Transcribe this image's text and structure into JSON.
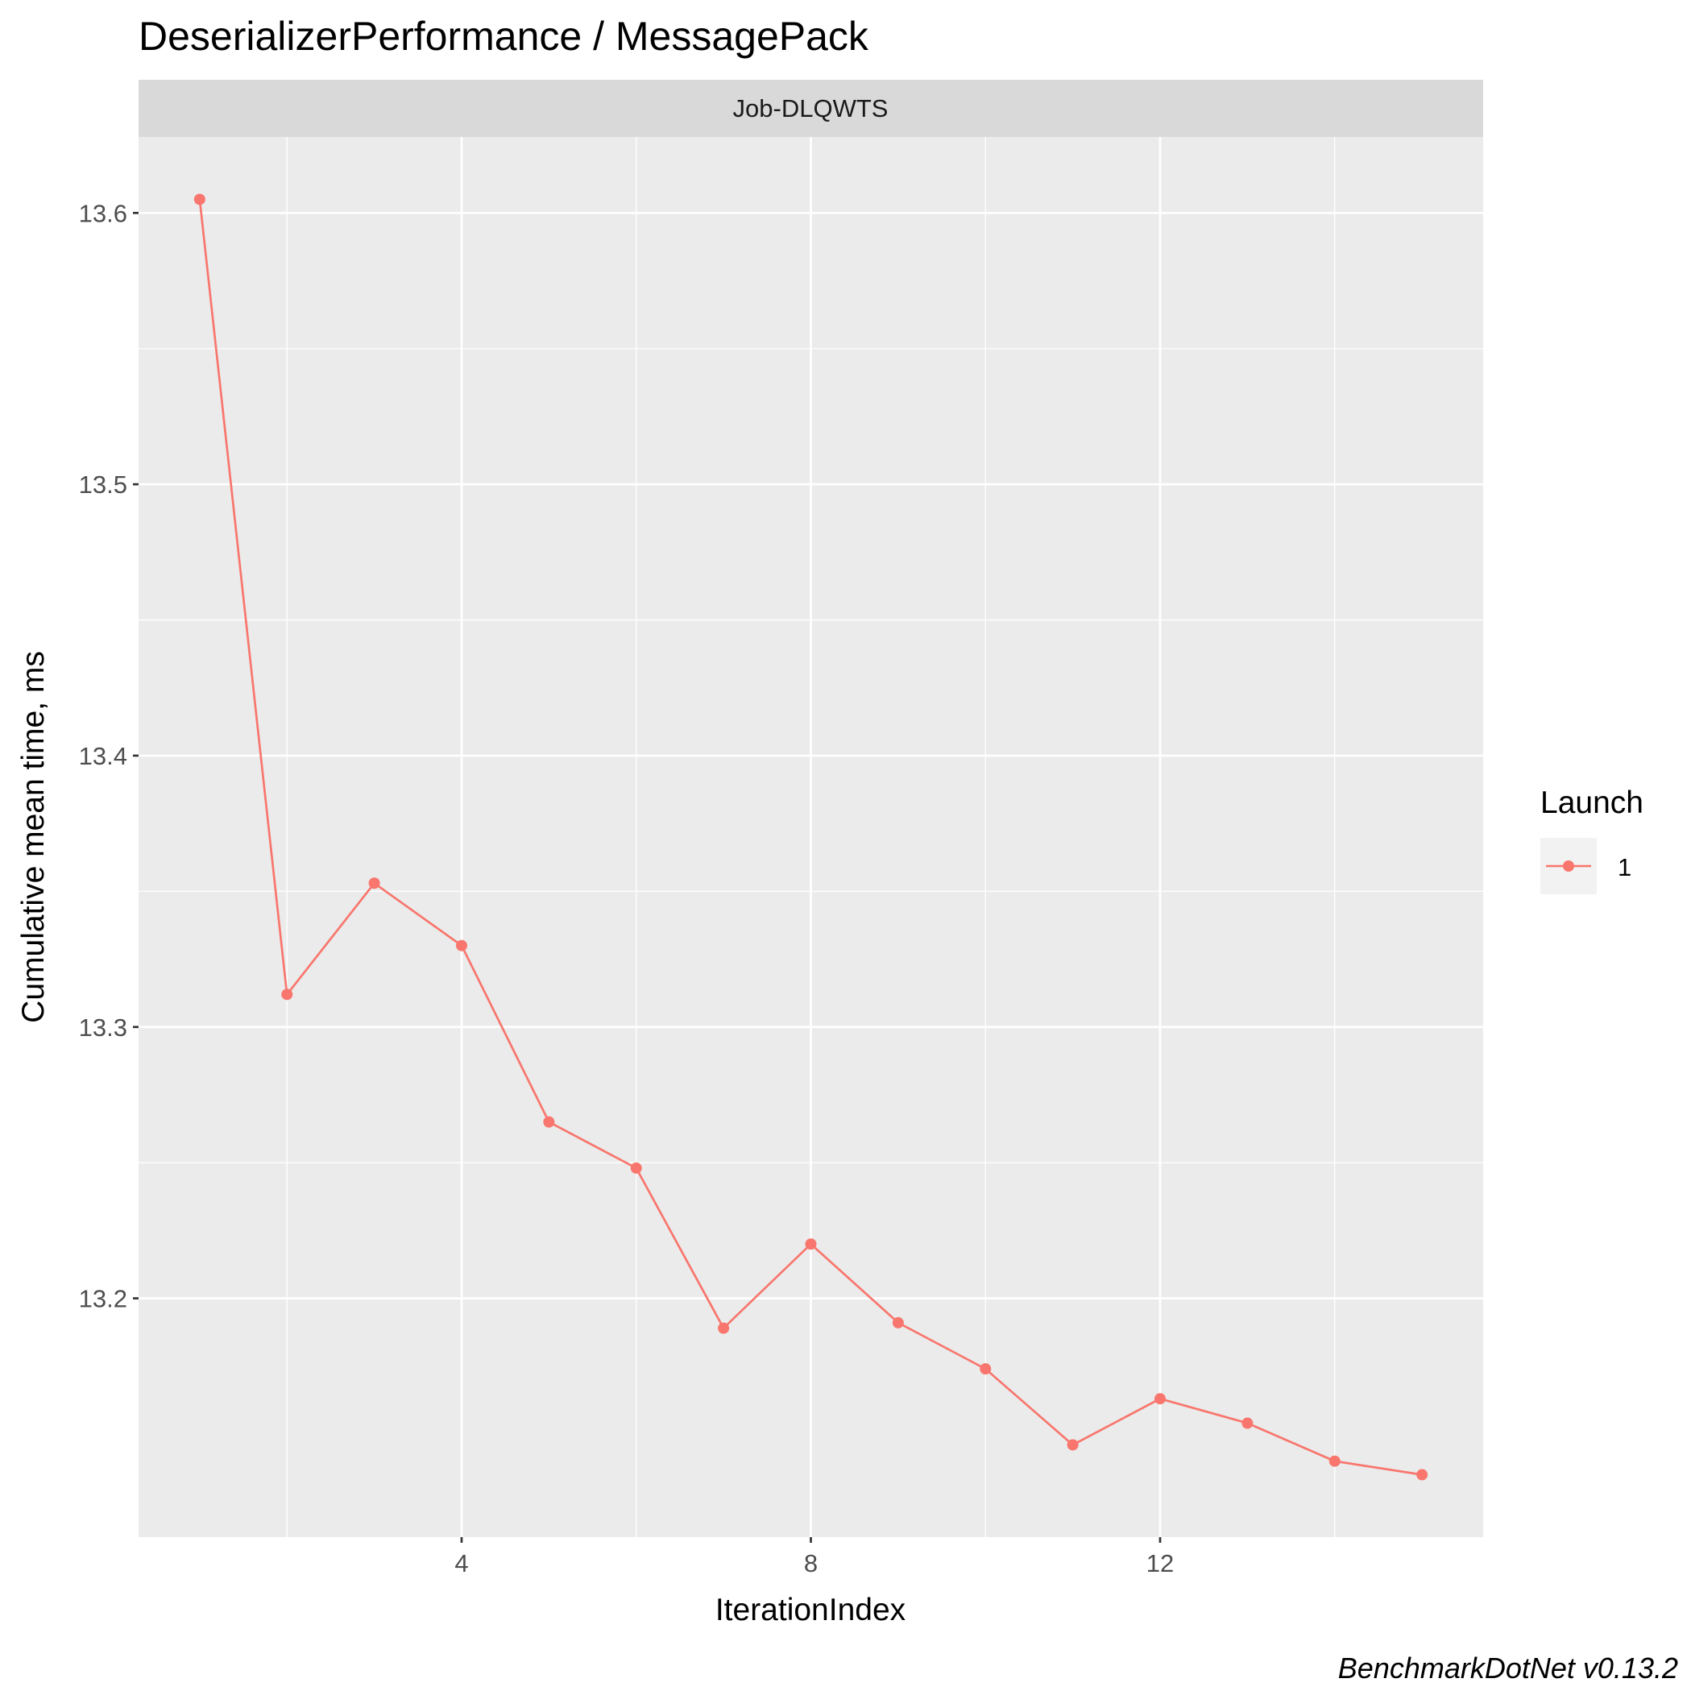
{
  "chart_data": {
    "type": "line",
    "title": "DeserializerPerformance / MessagePack",
    "facet_label": "Job-DLQWTS",
    "xlabel": "IterationIndex",
    "ylabel": "Cumulative mean time, ms",
    "caption": "BenchmarkDotNet v0.13.2",
    "x_ticks": [
      4,
      8,
      12
    ],
    "y_ticks": [
      13.2,
      13.3,
      13.4,
      13.5,
      13.6
    ],
    "xlim": [
      0.3,
      15.7
    ],
    "ylim": [
      13.112,
      13.628
    ],
    "grid": true,
    "legend": {
      "title": "Launch",
      "position": "right",
      "entries": [
        "1"
      ]
    },
    "colors": {
      "series": "#f8766d",
      "panel": "#ebebeb",
      "strip": "#d9d9d9",
      "grid": "#ffffff"
    },
    "series": [
      {
        "name": "1",
        "x": [
          1,
          2,
          3,
          4,
          5,
          6,
          7,
          8,
          9,
          10,
          11,
          12,
          13,
          14,
          15
        ],
        "y": [
          13.605,
          13.312,
          13.353,
          13.33,
          13.265,
          13.248,
          13.189,
          13.22,
          13.191,
          13.174,
          13.146,
          13.163,
          13.154,
          13.14,
          13.135
        ]
      }
    ]
  }
}
